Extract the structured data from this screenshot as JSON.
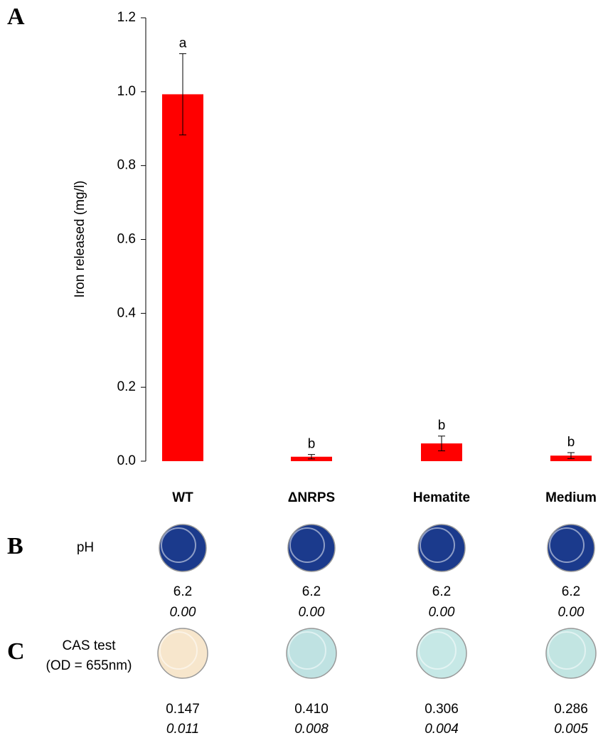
{
  "chart_data": {
    "type": "bar",
    "panel_label": "A",
    "y_label": "Iron released (mg/l)",
    "categories": [
      "WT",
      "ΔNRPS",
      "Hematite",
      "Medium"
    ],
    "values": [
      0.993,
      0.012,
      0.048,
      0.015
    ],
    "errors": [
      0.11,
      0.006,
      0.02,
      0.008
    ],
    "letters": [
      "a",
      "b",
      "b",
      "b"
    ],
    "color": "#ff0000",
    "ylim": [
      0,
      1.2
    ],
    "yticks": [
      {
        "value": 0,
        "label": "0.0"
      },
      0.2,
      0.4,
      0.6,
      0.8,
      {
        "value": 1,
        "label": "1.0"
      },
      1.2
    ]
  },
  "ph": {
    "panel_label": "B",
    "label": "pH",
    "values": [
      "6.2",
      "6.2",
      "6.2",
      "6.2"
    ],
    "sd": [
      "0.00",
      "0.00",
      "0.00",
      "0.00"
    ],
    "well_colors": [
      "#1b3a8c",
      "#1b3a8c",
      "#1b3a8c",
      "#1b3a8c"
    ]
  },
  "cas": {
    "panel_label": "C",
    "label": "CAS test",
    "sublabel": "(OD = 655nm)",
    "values": [
      "0.147",
      "0.410",
      "0.306",
      "0.286"
    ],
    "sd": [
      "0.011",
      "0.008",
      "0.004",
      "0.005"
    ],
    "well_colors": [
      "#f7e6cc",
      "#bfe2e2",
      "#c6e8e6",
      "#c2e5e2"
    ]
  }
}
